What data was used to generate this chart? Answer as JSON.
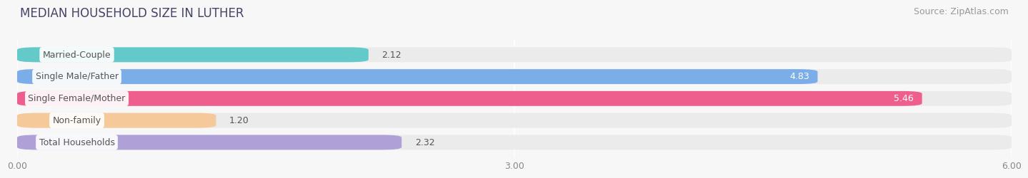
{
  "title": "MEDIAN HOUSEHOLD SIZE IN LUTHER",
  "source": "Source: ZipAtlas.com",
  "categories": [
    "Married-Couple",
    "Single Male/Father",
    "Single Female/Mother",
    "Non-family",
    "Total Households"
  ],
  "values": [
    2.12,
    4.83,
    5.46,
    1.2,
    2.32
  ],
  "bar_colors": [
    "#63c9c9",
    "#7baee8",
    "#ef5f8e",
    "#f5c99a",
    "#b0a0d8"
  ],
  "bar_bg_color": "#ebebeb",
  "xlim": [
    0,
    6.0
  ],
  "xticks": [
    0.0,
    3.0,
    6.0
  ],
  "xticklabels": [
    "0.00",
    "3.00",
    "6.00"
  ],
  "label_text_color": "#555555",
  "value_label_color_outside": "#555555",
  "background_color": "#f7f7f7",
  "title_color": "#444466",
  "title_fontsize": 12,
  "source_fontsize": 9,
  "label_fontsize": 9,
  "value_fontsize": 9,
  "tick_fontsize": 9
}
